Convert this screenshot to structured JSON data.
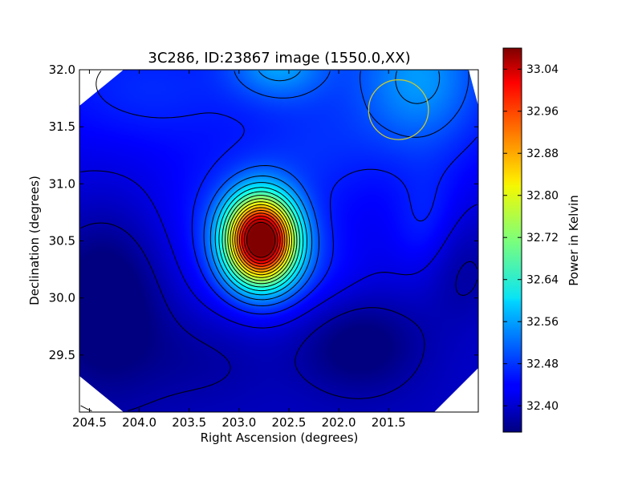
{
  "chart_data": {
    "type": "heatmap",
    "title": "3C286, ID:23867 image (1550.0,XX)",
    "xlabel": "Right Ascension (degrees)",
    "ylabel": "Declination (degrees)",
    "colorbar_label": "Power in Kelvin",
    "xlim": [
      204.6,
      200.6
    ],
    "ylim": [
      29.0,
      32.0
    ],
    "xticks": [
      204.5,
      204.0,
      203.5,
      203.0,
      202.5,
      202.0,
      201.5
    ],
    "xtick_labels": [
      "204.5",
      "204.0",
      "203.5",
      "203.0",
      "202.5",
      "202.0",
      "201.5"
    ],
    "yticks": [
      29.5,
      30.0,
      30.5,
      31.0,
      31.5,
      32.0
    ],
    "ytick_labels": [
      "29.5",
      "30.0",
      "30.5",
      "31.0",
      "31.5",
      "32.0"
    ],
    "colorbar_range": [
      32.35,
      33.08
    ],
    "colorbar_ticks": [
      32.4,
      32.48,
      32.56,
      32.64,
      32.72,
      32.8,
      32.88,
      32.96,
      33.04
    ],
    "colorbar_tick_labels": [
      "32.40",
      "32.48",
      "32.56",
      "32.64",
      "32.72",
      "32.80",
      "32.88",
      "32.96",
      "33.04"
    ],
    "colormap": "jet",
    "contour_color": "#000000",
    "peak": {
      "ra": 202.78,
      "dec": 30.51,
      "value": 33.06
    },
    "beam": {
      "ra": 201.4,
      "dec": 31.65,
      "radius_deg": 0.3,
      "color": "#c8c832"
    },
    "contours": true,
    "grid": false
  }
}
